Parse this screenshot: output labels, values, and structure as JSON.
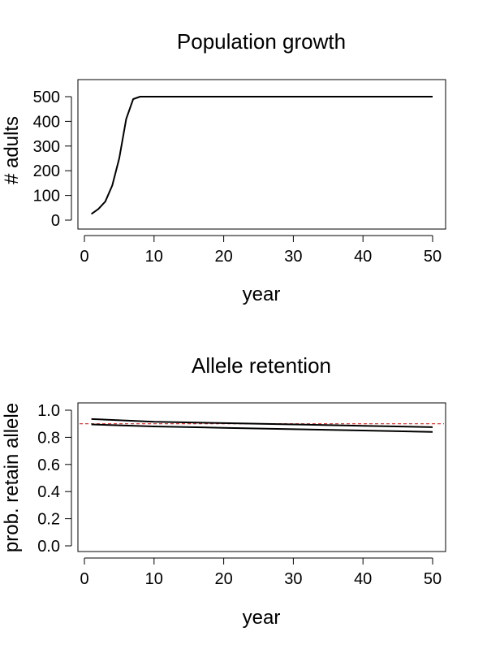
{
  "chart_data": [
    {
      "type": "line",
      "title": "Population growth",
      "xlabel": "year",
      "ylabel": "# adults",
      "xlim": [
        0,
        50
      ],
      "ylim": [
        0,
        500
      ],
      "x_ticks": [
        0,
        10,
        20,
        30,
        40,
        50
      ],
      "y_ticks": [
        0,
        100,
        200,
        300,
        400,
        500
      ],
      "grid": false,
      "series": [
        {
          "color": "#000000",
          "x": [
            1,
            2,
            3,
            4,
            5,
            6,
            7,
            8,
            9,
            10,
            15,
            20,
            25,
            30,
            35,
            40,
            45,
            50
          ],
          "values": [
            25,
            45,
            75,
            140,
            250,
            410,
            490,
            500,
            500,
            500,
            500,
            500,
            500,
            500,
            500,
            500,
            500,
            500
          ]
        }
      ]
    },
    {
      "type": "line",
      "title": "Allele retention",
      "xlabel": "year",
      "ylabel": "prob. retain allele",
      "xlim": [
        0,
        50
      ],
      "ylim": [
        0,
        1.0
      ],
      "x_ticks": [
        0,
        10,
        20,
        30,
        40,
        50
      ],
      "y_ticks": [
        "0.0",
        "0.2",
        "0.4",
        "0.6",
        "0.8",
        "1.0"
      ],
      "grid": false,
      "series": [
        {
          "color": "#000000",
          "x": [
            1,
            10,
            20,
            30,
            40,
            50
          ],
          "values": [
            0.935,
            0.915,
            0.905,
            0.895,
            0.885,
            0.875
          ]
        },
        {
          "color": "#000000",
          "x": [
            1,
            10,
            20,
            30,
            40,
            50
          ],
          "values": [
            0.895,
            0.88,
            0.87,
            0.86,
            0.85,
            0.84
          ]
        }
      ],
      "reference_line": {
        "y": 0.9,
        "color": "#d62728",
        "style": "dashed"
      }
    }
  ]
}
